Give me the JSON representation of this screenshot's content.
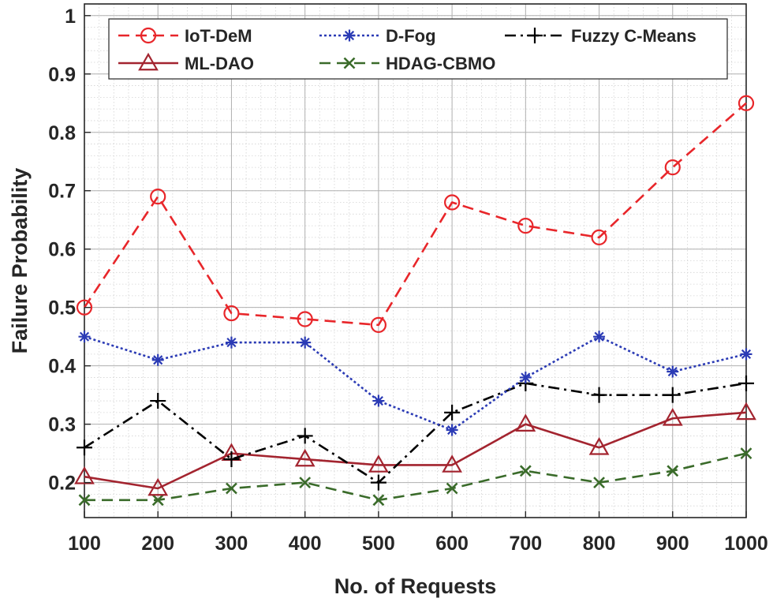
{
  "chart_data": {
    "type": "line",
    "title": "",
    "xlabel": "No. of Requests",
    "ylabel": "Failure Probability",
    "x": [
      100,
      200,
      300,
      400,
      500,
      600,
      700,
      800,
      900,
      1000
    ],
    "x_tick_labels": [
      "100",
      "200",
      "300",
      "400",
      "500",
      "600",
      "700",
      "800",
      "900",
      "1000"
    ],
    "y_ticks": [
      0.2,
      0.3,
      0.4,
      0.5,
      0.6,
      0.7,
      0.8,
      0.9,
      1
    ],
    "y_tick_labels": [
      "0.2",
      "0.3",
      "0.4",
      "0.5",
      "0.6",
      "0.7",
      "0.8",
      "0.9",
      "1"
    ],
    "xlim": [
      100,
      1000
    ],
    "ylim": [
      0.14,
      1.02
    ],
    "grid": true,
    "minor_grid": true,
    "legend_position": "top",
    "series": [
      {
        "name": "IoT-DeM",
        "color": "#e8262a",
        "dash": "dashed",
        "marker": "circle",
        "values": [
          0.5,
          0.69,
          0.49,
          0.48,
          0.47,
          0.68,
          0.64,
          0.62,
          0.74,
          0.85
        ]
      },
      {
        "name": "D-Fog",
        "color": "#2b3bb5",
        "dash": "dotted",
        "marker": "asterisk",
        "values": [
          0.45,
          0.41,
          0.44,
          0.44,
          0.34,
          0.29,
          0.38,
          0.45,
          0.39,
          0.42
        ]
      },
      {
        "name": "Fuzzy C-Means",
        "color": "#000000",
        "dash": "dashdot",
        "marker": "plus",
        "values": [
          0.26,
          0.34,
          0.24,
          0.28,
          0.2,
          0.32,
          0.37,
          0.35,
          0.35,
          0.37
        ]
      },
      {
        "name": "ML-DAO",
        "color": "#a3242f",
        "dash": "solid",
        "marker": "triangle",
        "values": [
          0.21,
          0.19,
          0.25,
          0.24,
          0.23,
          0.23,
          0.3,
          0.26,
          0.31,
          0.32
        ]
      },
      {
        "name": "HDAG-CBMO",
        "color": "#3a6b2a",
        "dash": "dashed",
        "marker": "x",
        "values": [
          0.17,
          0.17,
          0.19,
          0.2,
          0.17,
          0.19,
          0.22,
          0.2,
          0.22,
          0.25
        ]
      }
    ]
  }
}
